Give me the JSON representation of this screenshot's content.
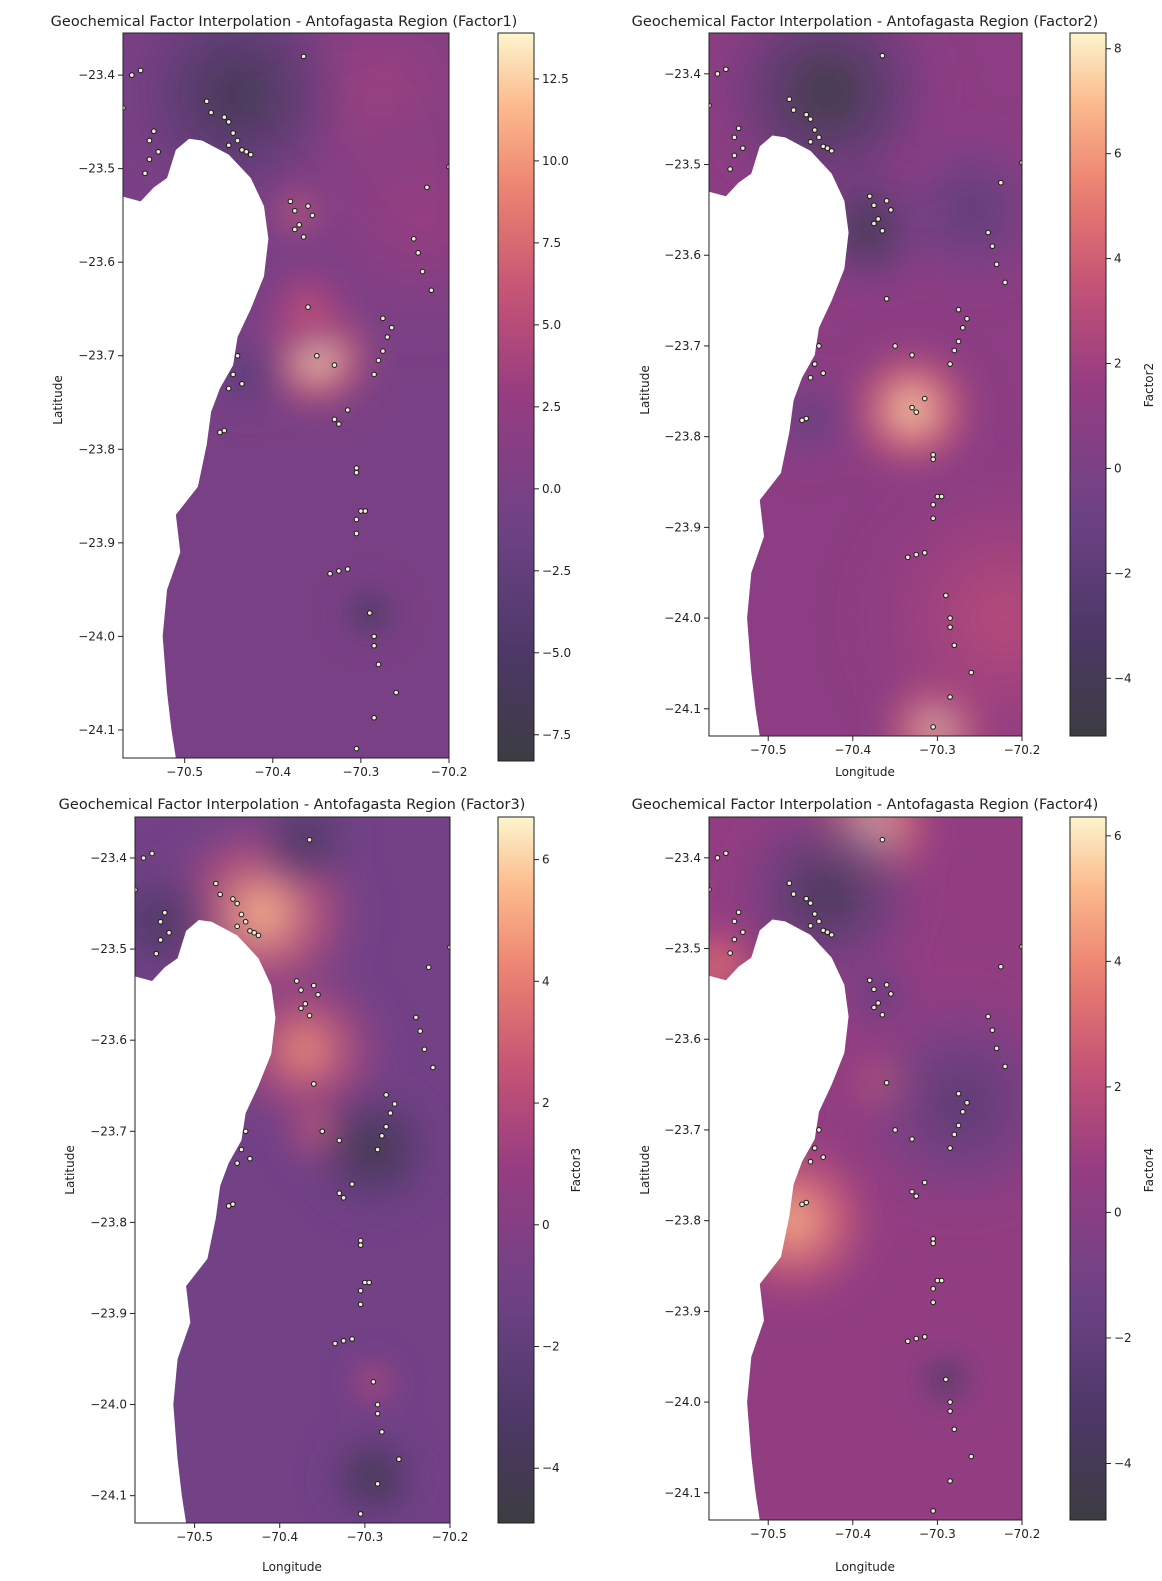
{
  "chart_data": [
    {
      "type": "heatmap",
      "title": "Geochemical Factor Interpolation - Antofagasta Region (Factor1)",
      "xlabel": "",
      "ylabel": "Latitude",
      "colorbar_label": "",
      "xlim": [
        -70.57,
        -70.2
      ],
      "ylim": [
        -24.13,
        -23.355
      ],
      "xticks": [
        -70.5,
        -70.4,
        -70.3,
        -70.2
      ],
      "xtick_labels": [
        "−70.5",
        "−70.4",
        "−70.3",
        "−70.2"
      ],
      "yticks": [
        -23.4,
        -23.5,
        -23.6,
        -23.7,
        -23.8,
        -23.9,
        -24.0,
        -24.1
      ],
      "ytick_labels": [
        "−23.4",
        "−23.5",
        "−23.6",
        "−23.7",
        "−23.8",
        "−23.9",
        "−24.0",
        "−24.1"
      ],
      "colorbar_range": [
        -8.3,
        13.9
      ],
      "colorbar_ticks": [
        12.5,
        10.0,
        7.5,
        5.0,
        2.5,
        0.0,
        -2.5,
        -5.0,
        -7.5
      ],
      "colorbar_tick_labels": [
        "12.5",
        "10.0",
        "7.5",
        "5.0",
        "2.5",
        "0.0",
        "−2.5",
        "−5.0",
        "−7.5"
      ],
      "colormap": "magma",
      "base_level": 0.0,
      "features": [
        {
          "lon": -70.35,
          "lat": -23.7,
          "value": 13.5,
          "radius": 0.035
        },
        {
          "lon": -70.37,
          "lat": -23.545,
          "value": 9.5,
          "radius": 0.018
        },
        {
          "lon": -70.36,
          "lat": -23.65,
          "value": 6.0,
          "radius": 0.03
        },
        {
          "lon": -70.28,
          "lat": -23.43,
          "value": 3.5,
          "radius": 0.09
        },
        {
          "lon": -70.23,
          "lat": -23.55,
          "value": 3.0,
          "radius": 0.07
        },
        {
          "lon": -70.44,
          "lat": -23.42,
          "value": -7.0,
          "radius": 0.065
        },
        {
          "lon": -70.29,
          "lat": -23.975,
          "value": -7.5,
          "radius": 0.018
        },
        {
          "lon": -70.43,
          "lat": -23.72,
          "value": -3.5,
          "radius": 0.025
        }
      ]
    },
    {
      "type": "heatmap",
      "title": "Geochemical Factor Interpolation - Antofagasta Region (Factor2)",
      "xlabel": "Longitude",
      "ylabel": "Latitude",
      "colorbar_label": "Factor2",
      "xlim": [
        -70.57,
        -70.2
      ],
      "ylim": [
        -24.13,
        -23.355
      ],
      "xticks": [
        -70.5,
        -70.4,
        -70.3,
        -70.2
      ],
      "xtick_labels": [
        "−70.5",
        "−70.4",
        "−70.3",
        "−70.2"
      ],
      "yticks": [
        -23.4,
        -23.5,
        -23.6,
        -23.7,
        -23.8,
        -23.9,
        -24.0,
        -24.1
      ],
      "ytick_labels": [
        "−23.4",
        "−23.5",
        "−23.6",
        "−23.7",
        "−23.8",
        "−23.9",
        "−24.0",
        "−24.1"
      ],
      "colorbar_range": [
        -5.1,
        8.3
      ],
      "colorbar_ticks": [
        8,
        6,
        4,
        2,
        0,
        -2,
        -4
      ],
      "colorbar_tick_labels": [
        "8",
        "6",
        "4",
        "2",
        "0",
        "−2",
        "−4"
      ],
      "colormap": "magma",
      "base_level": 1.0,
      "features": [
        {
          "lon": -70.33,
          "lat": -23.77,
          "value": 7.5,
          "radius": 0.04
        },
        {
          "lon": -70.3,
          "lat": -24.12,
          "value": 8.0,
          "radius": 0.035
        },
        {
          "lon": -70.43,
          "lat": -23.42,
          "value": -5.0,
          "radius": 0.07
        },
        {
          "lon": -70.38,
          "lat": -23.57,
          "value": -4.5,
          "radius": 0.04
        },
        {
          "lon": -70.26,
          "lat": -23.55,
          "value": -2.0,
          "radius": 0.05
        },
        {
          "lon": -70.45,
          "lat": -23.78,
          "value": -1.5,
          "radius": 0.03
        },
        {
          "lon": -70.22,
          "lat": -24.0,
          "value": 3.0,
          "radius": 0.09
        }
      ]
    },
    {
      "type": "heatmap",
      "title": "Geochemical Factor Interpolation - Antofagasta Region (Factor3)",
      "xlabel": "Longitude",
      "ylabel": "Latitude",
      "colorbar_label": "Factor3",
      "xlim": [
        -70.57,
        -70.2
      ],
      "ylim": [
        -24.13,
        -23.355
      ],
      "xticks": [
        -70.5,
        -70.4,
        -70.3,
        -70.2
      ],
      "xtick_labels": [
        "−70.5",
        "−70.4",
        "−70.3",
        "−70.2"
      ],
      "yticks": [
        -23.4,
        -23.5,
        -23.6,
        -23.7,
        -23.8,
        -23.9,
        -24.0,
        -24.1
      ],
      "ytick_labels": [
        "−23.4",
        "−23.5",
        "−23.6",
        "−23.7",
        "−23.8",
        "−23.9",
        "−24.0",
        "−24.1"
      ],
      "colorbar_range": [
        -4.9,
        6.7
      ],
      "colorbar_ticks": [
        6,
        4,
        2,
        0,
        -2,
        -4
      ],
      "colorbar_tick_labels": [
        "6",
        "4",
        "2",
        "0",
        "−2",
        "−4"
      ],
      "colormap": "magma",
      "base_level": -1.0,
      "features": [
        {
          "lon": -70.42,
          "lat": -23.46,
          "value": 5.5,
          "radius": 0.06
        },
        {
          "lon": -70.37,
          "lat": -23.61,
          "value": 4.5,
          "radius": 0.05
        },
        {
          "lon": -70.35,
          "lat": -23.7,
          "value": 4.0,
          "radius": 0.025
        },
        {
          "lon": -70.29,
          "lat": -23.975,
          "value": 3.0,
          "radius": 0.015
        },
        {
          "lon": -70.29,
          "lat": -23.72,
          "value": -4.5,
          "radius": 0.04
        },
        {
          "lon": -70.29,
          "lat": -24.08,
          "value": -4.5,
          "radius": 0.03
        },
        {
          "lon": -70.37,
          "lat": -23.38,
          "value": -3.5,
          "radius": 0.03
        },
        {
          "lon": -70.54,
          "lat": -23.47,
          "value": -3.5,
          "radius": 0.035
        }
      ]
    },
    {
      "type": "heatmap",
      "title": "Geochemical Factor Interpolation - Antofagasta Region (Factor4)",
      "xlabel": "Longitude",
      "ylabel": "Latitude",
      "colorbar_label": "Factor4",
      "xlim": [
        -70.57,
        -70.2
      ],
      "ylim": [
        -24.13,
        -23.355
      ],
      "xticks": [
        -70.5,
        -70.4,
        -70.3,
        -70.2
      ],
      "xtick_labels": [
        "−70.5",
        "−70.4",
        "−70.3",
        "−70.2"
      ],
      "yticks": [
        -23.4,
        -23.5,
        -23.6,
        -23.7,
        -23.8,
        -23.9,
        -24.0,
        -24.1
      ],
      "ytick_labels": [
        "−23.4",
        "−23.5",
        "−23.6",
        "−23.7",
        "−23.8",
        "−23.9",
        "−24.0",
        "−24.1"
      ],
      "colorbar_range": [
        -4.9,
        6.3
      ],
      "colorbar_ticks": [
        6,
        4,
        2,
        0,
        -2,
        -4
      ],
      "colorbar_tick_labels": [
        "6",
        "4",
        "2",
        "0",
        "−2",
        "−4"
      ],
      "colormap": "magma",
      "base_level": 0.5,
      "features": [
        {
          "lon": -70.38,
          "lat": -23.37,
          "value": 6.0,
          "radius": 0.04
        },
        {
          "lon": -70.47,
          "lat": -23.8,
          "value": 5.0,
          "radius": 0.05
        },
        {
          "lon": -70.56,
          "lat": -23.52,
          "value": 3.5,
          "radius": 0.03
        },
        {
          "lon": -70.36,
          "lat": -23.65,
          "value": 3.5,
          "radius": 0.025
        },
        {
          "lon": -70.43,
          "lat": -23.44,
          "value": -4.0,
          "radius": 0.06
        },
        {
          "lon": -70.29,
          "lat": -23.975,
          "value": -4.8,
          "radius": 0.018
        },
        {
          "lon": -70.27,
          "lat": -23.67,
          "value": -2.5,
          "radius": 0.07
        },
        {
          "lon": -70.37,
          "lat": -23.55,
          "value": -2.0,
          "radius": 0.025
        }
      ]
    }
  ],
  "coastline": [
    [
      -70.57,
      -23.53
    ],
    [
      -70.55,
      -23.535
    ],
    [
      -70.535,
      -23.52
    ],
    [
      -70.52,
      -23.51
    ],
    [
      -70.51,
      -23.48
    ],
    [
      -70.495,
      -23.468
    ],
    [
      -70.48,
      -23.47
    ],
    [
      -70.45,
      -23.485
    ],
    [
      -70.425,
      -23.51
    ],
    [
      -70.41,
      -23.54
    ],
    [
      -70.405,
      -23.575
    ],
    [
      -70.41,
      -23.615
    ],
    [
      -70.425,
      -23.65
    ],
    [
      -70.44,
      -23.68
    ],
    [
      -70.445,
      -23.71
    ],
    [
      -70.46,
      -23.735
    ],
    [
      -70.47,
      -23.76
    ],
    [
      -70.475,
      -23.795
    ],
    [
      -70.485,
      -23.84
    ],
    [
      -70.51,
      -23.87
    ],
    [
      -70.505,
      -23.91
    ],
    [
      -70.52,
      -23.95
    ],
    [
      -70.525,
      -24.0
    ],
    [
      -70.52,
      -24.06
    ],
    [
      -70.515,
      -24.1
    ],
    [
      -70.51,
      -24.13
    ],
    [
      -70.57,
      -24.13
    ]
  ],
  "sample_points": [
    [
      -70.56,
      -23.4
    ],
    [
      -70.55,
      -23.395
    ],
    [
      -70.57,
      -23.435
    ],
    [
      -70.535,
      -23.46
    ],
    [
      -70.54,
      -23.47
    ],
    [
      -70.53,
      -23.482
    ],
    [
      -70.54,
      -23.49
    ],
    [
      -70.545,
      -23.505
    ],
    [
      -70.475,
      -23.428
    ],
    [
      -70.47,
      -23.44
    ],
    [
      -70.455,
      -23.445
    ],
    [
      -70.45,
      -23.45
    ],
    [
      -70.445,
      -23.462
    ],
    [
      -70.44,
      -23.47
    ],
    [
      -70.45,
      -23.475
    ],
    [
      -70.435,
      -23.48
    ],
    [
      -70.43,
      -23.482
    ],
    [
      -70.425,
      -23.485
    ],
    [
      -70.38,
      -23.535
    ],
    [
      -70.375,
      -23.545
    ],
    [
      -70.37,
      -23.56
    ],
    [
      -70.375,
      -23.565
    ],
    [
      -70.365,
      -23.573
    ],
    [
      -70.36,
      -23.54
    ],
    [
      -70.355,
      -23.55
    ],
    [
      -70.365,
      -23.38
    ],
    [
      -70.24,
      -23.575
    ],
    [
      -70.235,
      -23.59
    ],
    [
      -70.225,
      -23.52
    ],
    [
      -70.23,
      -23.61
    ],
    [
      -70.22,
      -23.63
    ],
    [
      -70.2,
      -23.498
    ],
    [
      -70.36,
      -23.648
    ],
    [
      -70.35,
      -23.7
    ],
    [
      -70.33,
      -23.71
    ],
    [
      -70.265,
      -23.67
    ],
    [
      -70.27,
      -23.68
    ],
    [
      -70.275,
      -23.695
    ],
    [
      -70.28,
      -23.705
    ],
    [
      -70.285,
      -23.72
    ],
    [
      -70.275,
      -23.66
    ],
    [
      -70.44,
      -23.7
    ],
    [
      -70.445,
      -23.72
    ],
    [
      -70.45,
      -23.735
    ],
    [
      -70.435,
      -23.73
    ],
    [
      -70.455,
      -23.78
    ],
    [
      -70.46,
      -23.782
    ],
    [
      -70.33,
      -23.768
    ],
    [
      -70.325,
      -23.773
    ],
    [
      -70.315,
      -23.758
    ],
    [
      -70.305,
      -23.82
    ],
    [
      -70.305,
      -23.825
    ],
    [
      -70.3,
      -23.866
    ],
    [
      -70.295,
      -23.866
    ],
    [
      -70.305,
      -23.875
    ],
    [
      -70.305,
      -23.89
    ],
    [
      -70.335,
      -23.933
    ],
    [
      -70.325,
      -23.93
    ],
    [
      -70.315,
      -23.928
    ],
    [
      -70.29,
      -23.975
    ],
    [
      -70.285,
      -24.0
    ],
    [
      -70.285,
      -24.01
    ],
    [
      -70.28,
      -24.03
    ],
    [
      -70.26,
      -24.06
    ],
    [
      -70.285,
      -24.087
    ],
    [
      -70.305,
      -24.12
    ]
  ]
}
